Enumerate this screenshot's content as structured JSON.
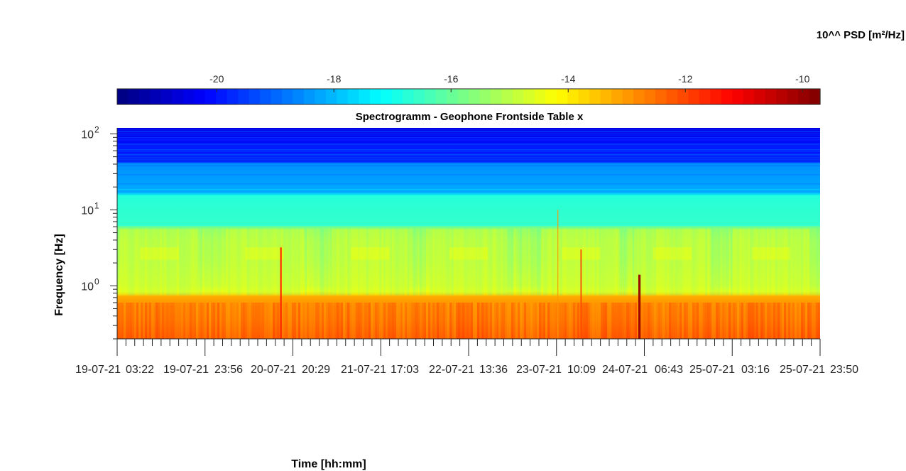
{
  "chart_data": {
    "type": "heatmap",
    "title": "Spectrogramm - Geophone Frontside Table x",
    "xlabel": "Time [hh:mm]",
    "ylabel": "Frequency [Hz]",
    "y_scale": "log",
    "ylim": [
      0.2,
      120
    ],
    "y_ticks": [
      {
        "value": 1,
        "base": "10",
        "exp": "0"
      },
      {
        "value": 10,
        "base": "10",
        "exp": "1"
      },
      {
        "value": 100,
        "base": "10",
        "exp": "2"
      }
    ],
    "x_tick_labels": [
      "19-07-21",
      "03:22",
      "19-07-21",
      "23:56",
      "20-07-21",
      "20:29",
      "21-07-21",
      "17:03",
      "22-07-21",
      "13:36",
      "23-07-21",
      "10:09",
      "24-07-21",
      "06:43",
      "25-07-21",
      "03:16",
      "25-07-21",
      "23:50"
    ],
    "colorbar": {
      "label": "10^^ PSD [m²/Hz]",
      "range": [
        -21.7,
        -9.7
      ],
      "ticks": [
        "-20",
        "-18",
        "-16",
        "-14",
        "-12",
        "-10"
      ],
      "tick_values": [
        -20,
        -18,
        -16,
        -14,
        -12,
        -10
      ],
      "colormap": "jet",
      "orientation": "horizontal"
    },
    "approx_psd_bands": [
      {
        "freq_range_hz": [
          0.2,
          0.35
        ],
        "log10_psd": -12.5
      },
      {
        "freq_range_hz": [
          0.35,
          0.75
        ],
        "log10_psd": -13.0
      },
      {
        "freq_range_hz": [
          0.75,
          6
        ],
        "log10_psd": -15.3
      },
      {
        "freq_range_hz": [
          6,
          16
        ],
        "log10_psd": -16.5
      },
      {
        "freq_range_hz": [
          16,
          40
        ],
        "log10_psd": -18.2
      },
      {
        "freq_range_hz": [
          40,
          120
        ],
        "log10_psd": -20.0
      }
    ]
  }
}
